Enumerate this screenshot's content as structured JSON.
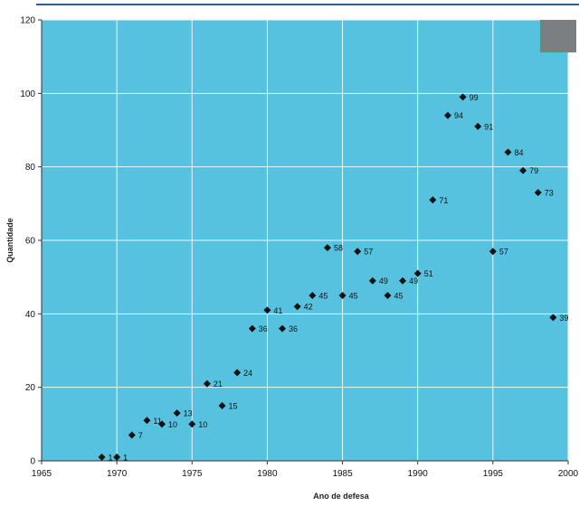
{
  "chart_data": {
    "type": "scatter",
    "title": "",
    "xlabel": "Ano de defesa",
    "ylabel": "Quantidade",
    "xlim": [
      1965,
      2000
    ],
    "ylim": [
      0,
      120
    ],
    "xticks": [
      "1965",
      "1970",
      "1975",
      "1980",
      "1985",
      "1990",
      "1995",
      "2000"
    ],
    "yticks": [
      "0",
      "20",
      "40",
      "60",
      "80",
      "100",
      "120"
    ],
    "grid": true,
    "marker": "diamond",
    "colors": {
      "plot_background": "#56c2df",
      "grid": "#e8f6fb",
      "marker": "#111111"
    },
    "series": [
      {
        "x": [
          1969,
          1970,
          1971,
          1972,
          1973,
          1974,
          1975,
          1976,
          1977,
          1978,
          1979,
          1980,
          1981,
          1982,
          1983,
          1984,
          1985,
          1986,
          1987,
          1988,
          1989,
          1990,
          1991,
          1992,
          1993,
          1994,
          1995,
          1996,
          1997,
          1998,
          1999
        ],
        "y": [
          1,
          1,
          7,
          11,
          10,
          13,
          10,
          21,
          15,
          24,
          36,
          41,
          36,
          42,
          45,
          58,
          45,
          57,
          49,
          45,
          49,
          51,
          71,
          94,
          99,
          91,
          57,
          84,
          79,
          73,
          39
        ],
        "labels": [
          "1",
          "1",
          "7",
          "11",
          "10",
          "13",
          "10",
          "21",
          "15",
          "24",
          "36",
          "41",
          "36",
          "42",
          "45",
          "58",
          "45",
          "57",
          "49",
          "45",
          "49",
          "51",
          "71",
          "94",
          "99",
          "91",
          "57",
          "84",
          "79",
          "73",
          "39"
        ]
      }
    ]
  }
}
